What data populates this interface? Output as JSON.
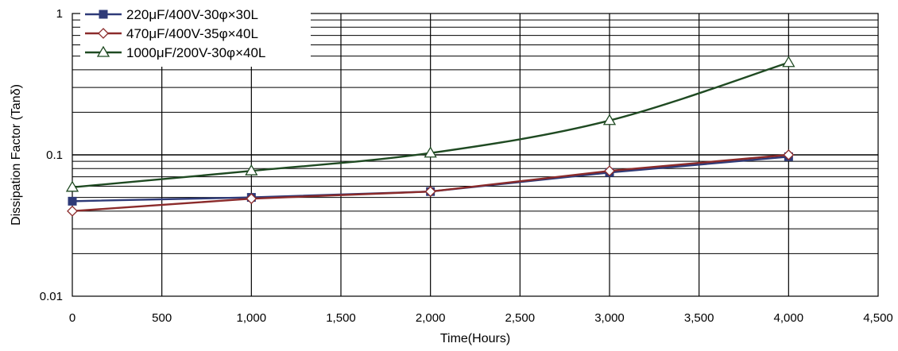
{
  "chart_data": {
    "type": "line",
    "title": "",
    "xlabel": "Time(Hours)",
    "ylabel": "Dissipation Factor (Tanδ)",
    "x": [
      0,
      1000,
      2000,
      3000,
      4000
    ],
    "xlim": [
      0,
      4500
    ],
    "x_ticks": [
      0,
      500,
      1000,
      1500,
      2000,
      2500,
      3000,
      3500,
      4000,
      4500
    ],
    "x_tick_labels": [
      "0",
      "500",
      "1,000",
      "1,500",
      "2,000",
      "2,500",
      "3,000",
      "3,500",
      "4,000",
      "4,500"
    ],
    "ylim": [
      0.01,
      1
    ],
    "y_scale": "log",
    "y_ticks": [
      0.01,
      0.1,
      1
    ],
    "y_tick_labels": [
      "0.01",
      "0.1",
      "1"
    ],
    "grid": true,
    "legend_position": "top-left",
    "series": [
      {
        "name": "220μF/400V-30φ×30L",
        "values": [
          0.047,
          0.05,
          0.055,
          0.075,
          0.097
        ],
        "color": "#2e3a78",
        "marker": "square"
      },
      {
        "name": "470μF/400V-35φ×40L",
        "values": [
          0.04,
          0.049,
          0.055,
          0.077,
          0.1
        ],
        "color": "#8b2b2b",
        "marker": "diamond"
      },
      {
        "name": "1000μF/200V-30φ×40L",
        "values": [
          0.059,
          0.077,
          0.103,
          0.175,
          0.45
        ],
        "color": "#1f4a22",
        "marker": "triangle"
      }
    ]
  }
}
